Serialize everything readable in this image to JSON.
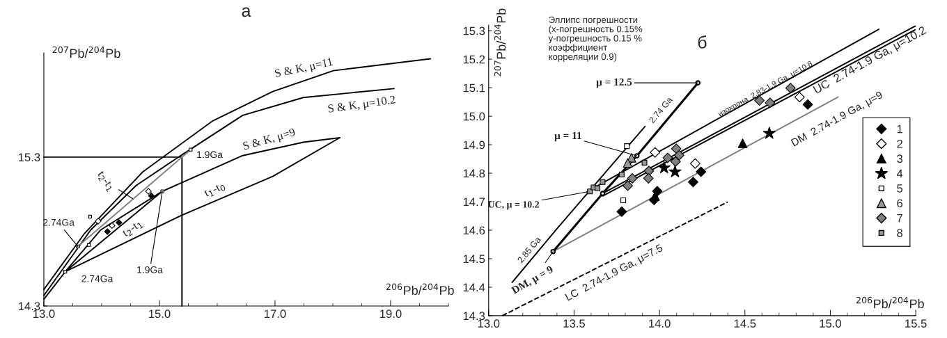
{
  "chart_data": [
    {
      "type": "scatter",
      "title": "а",
      "xlabel": "$^{206}$Pb/$^{204}$Pb",
      "ylabel": "$^{207}$Pb/$^{204}$Pb",
      "xlim": [
        13.0,
        20.0
      ],
      "ylim": [
        14.3,
        16.0
      ],
      "xticks": [
        {
          "value": 13,
          "label": "13.0"
        },
        {
          "value": 15,
          "label": "15.0"
        },
        {
          "value": 17,
          "label": "17.0"
        },
        {
          "value": 19,
          "label": "19.0"
        }
      ],
      "yticks": [
        14.3,
        15.3
      ],
      "grid": false,
      "legend": false,
      "series": [
        {
          "type": "line",
          "color": "#000000",
          "x": [
            13.0,
            13.71,
            14.71,
            15.91,
            16.96,
            18.01,
            19.69
          ],
          "values": [
            14.41,
            14.79,
            15.2,
            15.54,
            15.74,
            15.88,
            15.96
          ]
        },
        {
          "type": "line",
          "color": "#000000",
          "x": [
            13.0,
            13.81,
            14.6,
            15.33,
            16.44,
            17.49,
            19.06
          ],
          "values": [
            14.37,
            14.81,
            15.11,
            15.3,
            15.58,
            15.7,
            15.76
          ]
        },
        {
          "type": "line",
          "color": "#000000",
          "x": [
            13.0,
            13.37,
            13.98,
            15.05,
            16.44,
            17.49,
            18.12
          ],
          "values": [
            14.345,
            14.53,
            14.81,
            15.07,
            15.31,
            15.4,
            15.43
          ]
        },
        {
          "type": "line",
          "color": "#000000",
          "x": [
            13.37,
            15.39,
            16.96,
            18.12
          ],
          "values": [
            14.53,
            14.91,
            15.17,
            15.43
          ]
        },
        {
          "type": "line",
          "color": "#000000",
          "x": [
            13.0,
            15.39,
            15.39
          ],
          "values": [
            15.3,
            15.3,
            14.3
          ]
        },
        {
          "type": "line",
          "color": "#808080",
          "x": [
            13.59,
            15.54
          ],
          "values": [
            14.7,
            15.35
          ]
        },
        {
          "type": "line",
          "color": "#000000",
          "x": [
            13.37,
            15.05
          ],
          "values": [
            14.53,
            15.07
          ]
        },
        {
          "type": "scatter",
          "color": "#ffffff",
          "marker": "square",
          "x": [
            13.59,
            15.54,
            13.37,
            15.05
          ],
          "values": [
            14.7,
            15.35,
            14.53,
            15.07
          ]
        },
        {
          "type": "scatter",
          "color": "#ffffff",
          "marker": "square",
          "x": [
            13.8,
            13.78
          ],
          "values": [
            14.9,
            14.71
          ]
        },
        {
          "type": "scatter",
          "color": "#ffffff",
          "marker": "diamond",
          "x": [
            13.94,
            14.18,
            14.81
          ],
          "values": [
            14.87,
            14.84,
            15.07
          ]
        },
        {
          "type": "scatter",
          "color": "#000000",
          "marker": "diamond",
          "x": [
            14.86,
            14.1,
            14.3
          ],
          "values": [
            15.04,
            14.8,
            14.86
          ]
        }
      ],
      "annotations": [
        {
          "text": "S & K, μ=11",
          "x": 17.5,
          "y": 15.83
        },
        {
          "text": "S & K, μ=10.2",
          "x": 18.5,
          "y": 15.74
        },
        {
          "text": "S & K, μ=9",
          "x": 16.9,
          "y": 15.35
        },
        {
          "text": "t$_{2}$-t$_{1}$",
          "x": 14.54,
          "y": 15.02
        },
        "t$_{2}$-t$_{1}$",
        "t$_{1}$-t$_{0}$",
        {
          "text": "1.9Ga",
          "x": 15.54,
          "y": 15.35
        },
        {
          "text": "1.9Ga",
          "x": 15.05,
          "y": 15.07
        },
        {
          "text": "2.74Ga",
          "x": 13.59,
          "y": 14.7
        },
        {
          "text": "2.74Ga",
          "x": 13.37,
          "y": 14.53
        }
      ]
    },
    {
      "type": "scatter",
      "title": "б",
      "xlabel": "$^{206}$Pb/$^{204}$Pb",
      "ylabel": "$^{207}$Pb/$^{204}$Pb",
      "xlim": [
        13.0,
        15.5
      ],
      "ylim": [
        14.3,
        15.32
      ],
      "xticks": [
        {
          "value": 13,
          "label": "13.0"
        },
        13.5,
        {
          "value": 14,
          "label": "14.0"
        },
        14.5,
        {
          "value": 15,
          "label": "15.0"
        },
        15.5
      ],
      "yticks": [
        14.3,
        14.4,
        14.5,
        14.6,
        14.7,
        14.8,
        14.9,
        {
          "value": 15,
          "label": "15.0"
        },
        15.1,
        15.2,
        15.3
      ],
      "grid": false,
      "legend": "center right",
      "series": [
        {
          "type": "line",
          "color": "#000000",
          "x": [
            13.138,
            13.398,
            13.915
          ],
          "values": [
            14.417,
            14.604,
            14.964
          ]
        },
        {
          "type": "line",
          "color": "#000000",
          "x": [
            13.575,
            15.284
          ],
          "values": [
            14.735,
            15.305
          ]
        },
        {
          "type": "line",
          "color": "#000000",
          "x": [
            13.667,
            15.496
          ],
          "values": [
            14.729,
            15.316
          ]
        },
        {
          "type": "line",
          "color": "#000000",
          "x": [
            13.667,
            15.496
          ],
          "values": [
            14.72,
            15.303
          ]
        },
        {
          "type": "line",
          "color": "#808080",
          "x": [
            13.377,
            15.045
          ],
          "values": [
            14.525,
            15.067
          ]
        },
        {
          "type": "line",
          "color": "#000000",
          "marker": "circle",
          "x": [
            13.377,
            13.667,
            13.868,
            14.225
          ],
          "values": [
            14.525,
            14.729,
            14.861,
            15.117
          ]
        },
        {
          "type": "line",
          "color": "#000000",
          "line_style": "dashed",
          "x": [
            13.08,
            14.399
          ],
          "values": [
            14.3,
            14.699
          ]
        },
        {
          "name": "1",
          "color": "#000000",
          "marker": "diamond",
          "x": [
            13.779,
            13.968,
            13.987,
            14.197,
            14.243,
            14.868
          ],
          "values": [
            14.665,
            14.706,
            14.737,
            14.769,
            14.805,
            15.041
          ]
        },
        {
          "name": "2",
          "color": "#ffffff",
          "marker": "diamond",
          "x": [
            13.974,
            14.209,
            14.82
          ],
          "values": [
            14.873,
            14.834,
            15.067
          ]
        },
        {
          "name": "3",
          "color": "#000000",
          "marker": "triangle",
          "x": [
            14.487,
            13.974
          ],
          "values": [
            14.905,
            14.72
          ]
        },
        {
          "name": "4",
          "color": "#000000",
          "marker": "star",
          "x": [
            14.643,
            14.027,
            14.091
          ],
          "values": [
            14.94,
            14.819,
            14.805
          ]
        },
        {
          "name": "5",
          "color": "#ffffff",
          "marker": "square",
          "x": [
            13.809,
            13.788
          ],
          "values": [
            14.895,
            14.705
          ]
        },
        {
          "name": "6",
          "color": "#999999",
          "marker": "triangle",
          "x": [
            13.836,
            13.814
          ],
          "values": [
            14.854,
            14.836
          ]
        },
        {
          "name": "7",
          "color": "#808080",
          "marker": "diamond",
          "x": [
            13.814,
            13.841,
            13.938,
            13.935,
            14.048,
            14.098,
            14.115,
            14.094,
            14.585,
            14.647,
            14.767
          ],
          "values": [
            14.756,
            14.782,
            14.808,
            14.782,
            14.854,
            14.886,
            14.863,
            14.841,
            15.055,
            15.047,
            15.099
          ]
        },
        {
          "name": "8",
          "color": "#999999",
          "marker": "square",
          "x": [
            13.593,
            13.614,
            13.637,
            13.667,
            13.779,
            13.912
          ],
          "values": [
            14.736,
            14.75,
            14.747,
            14.769,
            14.795,
            14.837
          ]
        }
      ],
      "annotations": [
        "Эллипс погрешности\n(x-погрешность 0.15%\ny-погрешность 0.15 %\nкоэффициент\nкорреляции 0.9)",
        {
          "text": "μ = 12.5",
          "x": 14.225,
          "y": 15.117
        },
        "2.74 Ga",
        {
          "text": "μ = 11",
          "x": 13.868,
          "y": 14.861
        },
        {
          "text": "UC, μ = 10.2",
          "x": 13.58,
          "y": 14.735
        },
        "2.85 Ga",
        {
          "text": "DM, μ = 9",
          "x": 13.377,
          "y": 14.525
        },
        "LC  2.74-1.9 Ga, μ=7.5",
        "изохрона  2.83-1.9 Ga, μ=10.8",
        "UC  2.74-1.9 Ga, μ=10.2",
        "DM  2.74-1.9 Ga, μ=9"
      ]
    }
  ]
}
